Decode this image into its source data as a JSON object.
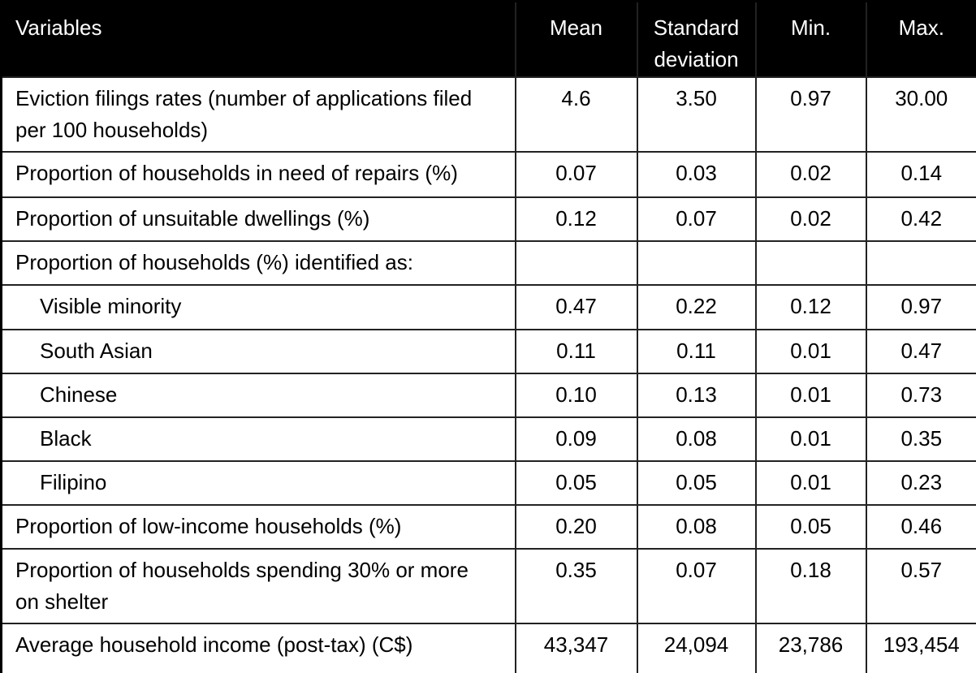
{
  "table": {
    "header": [
      "Variables",
      "Mean",
      "Standard deviation",
      "Min.",
      "Max."
    ],
    "rows": [
      {
        "label": "Eviction filings rates (number of applications filed per 100 households)",
        "indent": false,
        "values": [
          "4.6",
          "3.50",
          "0.97",
          "30.00"
        ]
      },
      {
        "label": "Proportion of households in need of repairs (%)",
        "indent": false,
        "values": [
          "0.07",
          "0.03",
          "0.02",
          "0.14"
        ]
      },
      {
        "label": "Proportion of unsuitable dwellings (%)",
        "indent": false,
        "values": [
          "0.12",
          "0.07",
          "0.02",
          "0.42"
        ]
      },
      {
        "label": "Proportion of households (%) identified as:",
        "indent": false,
        "values": [
          "",
          "",
          "",
          ""
        ]
      },
      {
        "label": "Visible minority",
        "indent": true,
        "values": [
          "0.47",
          "0.22",
          "0.12",
          "0.97"
        ]
      },
      {
        "label": "South Asian",
        "indent": true,
        "values": [
          "0.11",
          "0.11",
          "0.01",
          "0.47"
        ]
      },
      {
        "label": "Chinese",
        "indent": true,
        "values": [
          "0.10",
          "0.13",
          "0.01",
          "0.73"
        ]
      },
      {
        "label": "Black",
        "indent": true,
        "values": [
          "0.09",
          "0.08",
          "0.01",
          "0.35"
        ]
      },
      {
        "label": "Filipino",
        "indent": true,
        "values": [
          "0.05",
          "0.05",
          "0.01",
          "0.23"
        ]
      },
      {
        "label": "Proportion of low-income households (%)",
        "indent": false,
        "values": [
          "0.20",
          "0.08",
          "0.05",
          "0.46"
        ]
      },
      {
        "label": "Proportion of households spending 30% or more on shelter",
        "indent": false,
        "values": [
          "0.35",
          "0.07",
          "0.18",
          "0.57"
        ]
      },
      {
        "label": "Average household income (post-tax) (C$)",
        "indent": false,
        "values": [
          "43,347",
          "24,094",
          "23,786",
          "193,454"
        ]
      }
    ]
  },
  "colors": {
    "header_bg": "#000000",
    "header_text": "#ffffff",
    "body_bg": "#ffffff",
    "body_text": "#000000",
    "border": "#222222"
  }
}
